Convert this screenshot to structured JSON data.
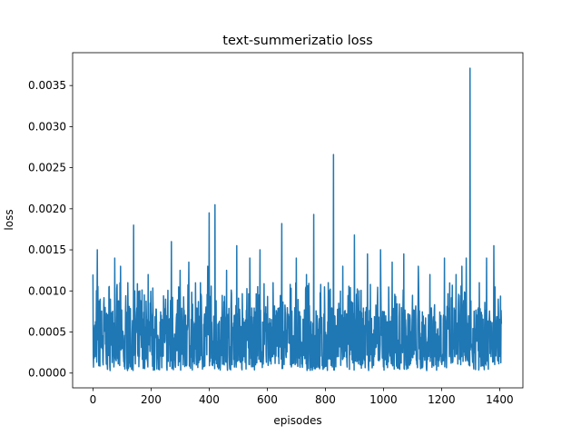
{
  "chart_data": {
    "type": "line",
    "title": "text-summerizatio loss",
    "xlabel": "episodes",
    "ylabel": "loss",
    "xlim": [
      -70,
      1480
    ],
    "ylim": [
      -0.00018,
      0.0039
    ],
    "x_ticks": [
      0,
      200,
      400,
      600,
      800,
      1000,
      1200,
      1400
    ],
    "x_tick_labels": [
      "0",
      "200",
      "400",
      "600",
      "800",
      "1000",
      "1200",
      "1400"
    ],
    "y_ticks": [
      0.0,
      0.0005,
      0.001,
      0.0015,
      0.002,
      0.0025,
      0.003,
      0.0035
    ],
    "y_tick_labels": [
      "0.0000",
      "0.0005",
      "0.0010",
      "0.0015",
      "0.0020",
      "0.0025",
      "0.0030",
      "0.0035"
    ],
    "grid": false,
    "legend": "none",
    "series_count": 1,
    "x_range": [
      0,
      1406
    ],
    "color": "#1f77b4",
    "series": [
      {
        "x": [
          0,
          8,
          15,
          25,
          35,
          40,
          45,
          60,
          75,
          80,
          95,
          110,
          120,
          140,
          160,
          190,
          220,
          250,
          270,
          280,
          300,
          310,
          330,
          350,
          370,
          380,
          395,
          400,
          410,
          420,
          440,
          460,
          470,
          495,
          520,
          540,
          560,
          575,
          590,
          605,
          620,
          650,
          680,
          700,
          720,
          735,
          760,
          790,
          810,
          828,
          845,
          860,
          880,
          900,
          920,
          945,
          960,
          990,
          1010,
          1030,
          1050,
          1070,
          1095,
          1120,
          1140,
          1160,
          1180,
          1210,
          1230,
          1250,
          1270,
          1285,
          1298,
          1310,
          1330,
          1355,
          1370,
          1380,
          1385,
          1395,
          1400,
          1406
        ],
        "y": [
          0.0012,
          0.0002,
          0.0015,
          0.0009,
          0.0001,
          0.0007,
          0.00025,
          0.0009,
          0.0014,
          0.00015,
          0.0013,
          5e-05,
          0.0011,
          0.0018,
          0.0002,
          0.0012,
          5e-05,
          0.0009,
          0.0016,
          0.0003,
          0.00125,
          0.0001,
          0.00135,
          0.0006,
          0.0011,
          0.0002,
          0.0013,
          0.00195,
          0.0001,
          0.00205,
          0.0003,
          0.00125,
          0.0001,
          0.00155,
          0.0002,
          0.0014,
          0.0001,
          0.0015,
          0.00035,
          0.0006,
          0.0011,
          0.00182,
          0.0001,
          0.0014,
          0.0003,
          0.0012,
          0.00193,
          0.0001,
          0.0011,
          0.00266,
          0.0002,
          0.0013,
          0.00035,
          0.00168,
          0.0001,
          0.00145,
          0.0003,
          0.0015,
          0.0001,
          0.00135,
          0.0004,
          0.00145,
          0.00015,
          0.0013,
          0.0002,
          0.0012,
          0.0001,
          0.0014,
          0.0003,
          0.0012,
          0.0013,
          0.0014,
          0.00371,
          0.0001,
          0.0011,
          0.0014,
          0.0002,
          0.00155,
          0.0004,
          0.0009,
          0.0006,
          0.0006
        ]
      }
    ]
  }
}
